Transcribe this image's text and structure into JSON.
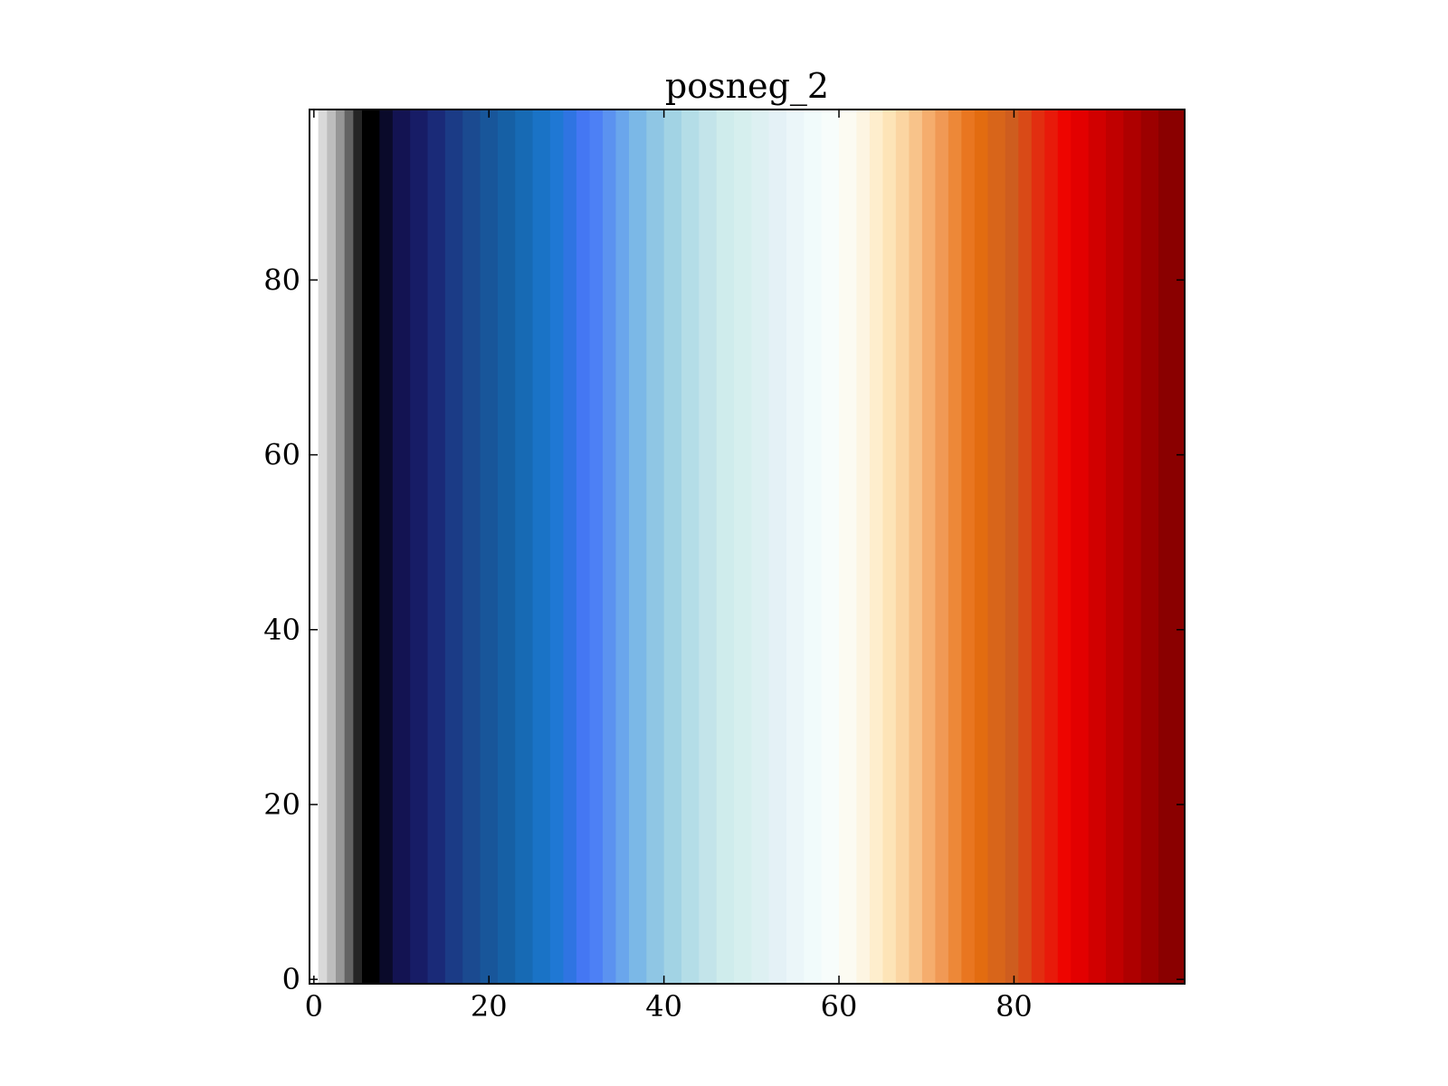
{
  "chart_data": {
    "type": "heatmap",
    "title": "posneg_2",
    "xlabel": "",
    "ylabel": "",
    "xlim": [
      -0.5,
      99.5
    ],
    "ylim": [
      -0.5,
      99.5
    ],
    "x_ticks": [
      0,
      20,
      40,
      60,
      80
    ],
    "x_tick_labels": [
      "0",
      "20",
      "40",
      "60",
      "80"
    ],
    "y_ticks": [
      0,
      20,
      40,
      60,
      80
    ],
    "y_tick_labels": [
      "0",
      "20",
      "40",
      "60",
      "80"
    ],
    "grid": false,
    "colormap_name": "posneg_2",
    "colormap": [
      "#ffffff",
      "#d9d9d9",
      "#bdbdbd",
      "#969696",
      "#636363",
      "#252525",
      "#000000",
      "#0a0a2a",
      "#131352",
      "#171c66",
      "#1a2a78",
      "#1b3b86",
      "#1b4a90",
      "#18569a",
      "#1660a5",
      "#176ab4",
      "#1a73c6",
      "#1f78d4",
      "#2f74e2",
      "#4477f3",
      "#4d80f5",
      "#5b92f0",
      "#6aa6ec",
      "#7bb8e7",
      "#8fc6e4",
      "#a2d3e4",
      "#b4dde7",
      "#c3e4ea",
      "#cfecec",
      "#d6efee",
      "#ddf0f2",
      "#e4f1f6",
      "#ebf6f9",
      "#f1fbfb",
      "#f7fdfb",
      "#fcfbf2",
      "#fdf5e2",
      "#feeecd",
      "#fde4b7",
      "#fbd5a2",
      "#f8c38a",
      "#f5ad6d",
      "#f09955",
      "#ed8838",
      "#e97620",
      "#e36c10",
      "#d8651a",
      "#ce5d1f",
      "#d94a17",
      "#e22e10",
      "#e81a0a",
      "#ee0500",
      "#e30000",
      "#d10000",
      "#c00000",
      "#ae0000",
      "#9c0000",
      "#8a0000"
    ],
    "column_bounds": [
      -0.5,
      0.5,
      1.5,
      2.5,
      3.5,
      4.5,
      5.5,
      7.5,
      9,
      11,
      13,
      15,
      17,
      19,
      21,
      23,
      25,
      27,
      28.5,
      30,
      31.5,
      33,
      34.5,
      36,
      38,
      40,
      42,
      44,
      46,
      48,
      50,
      52,
      54,
      56,
      58,
      60,
      62,
      63.5,
      65,
      66.5,
      68,
      69.5,
      71,
      72.5,
      74,
      75.5,
      77,
      79,
      80.5,
      82,
      83.5,
      85,
      86.5,
      88.5,
      90.5,
      92.5,
      94.5,
      96.5,
      99.5
    ]
  }
}
